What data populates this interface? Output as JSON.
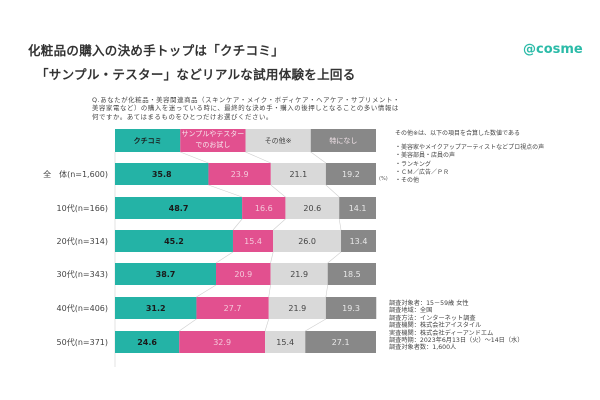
{
  "header": {
    "title_line1": "化粧品の購入の決め手トップは「クチコミ」",
    "title_line2": "「サンプル・テスター」などリアルな試用体験を上回る",
    "logo": "@cosme"
  },
  "question": [
    "Q.あなたが化粧品・美容関連商品（スキンケア・メイク・ボディケア・ヘアケア・サプリメント・",
    "美容家電など）の購入を迷っている時に、最終的な決め手・購入の後押しとなることの多い情報は",
    "何ですか。あてはまるものをひとつだけお選びください。"
  ],
  "note": {
    "heading": "その他※は、以下の項目を合算した数値である",
    "items": [
      "・美容家やメイクアップアーティストなどプロ視点の声",
      "・美容部員・店員の声",
      "・ランキング",
      "・ＣＭ／広告／ＰＲ",
      "・その他"
    ]
  },
  "survey": [
    "調査対象者：15－59歳 女性",
    "調査地域：全国",
    "調査方法：インターネット調査",
    "調査機関：株式会社アイスタイル",
    "実査機関：株式会社ディーアンドエム",
    "調査時期：2023年6月13日（火）～14日（水）",
    "調査対象者数：1,600人"
  ],
  "chart_data": {
    "type": "bar",
    "stacked": true,
    "orientation": "horizontal",
    "title": "化粧品の購入の決め手トップは「クチコミ」",
    "unit": "(%)",
    "xlim": [
      0,
      100
    ],
    "categories": [
      "全　体(n=1,600)",
      "10代(n=166)",
      "20代(n=314)",
      "30代(n=343)",
      "40代(n=406)",
      "50代(n=371)"
    ],
    "legend_header": [
      "クチコミ",
      "サンプルやテスター|でのお試し",
      "その他※",
      "特になし"
    ],
    "series": [
      {
        "name": "クチコミ",
        "color": "#24b3a6",
        "text_color": "#1a1a1a",
        "values": [
          35.8,
          48.7,
          45.2,
          38.7,
          31.2,
          24.6
        ]
      },
      {
        "name": "サンプルやテスターでのお試し",
        "color": "#e2508f",
        "text_color": "#f4c8da",
        "values": [
          23.9,
          16.6,
          15.4,
          20.9,
          27.7,
          32.9
        ]
      },
      {
        "name": "その他※",
        "color": "#d9d9d9",
        "text_color": "#444444",
        "values": [
          21.1,
          20.6,
          26.0,
          21.9,
          21.9,
          15.4
        ]
      },
      {
        "name": "特になし",
        "color": "#888888",
        "text_color": "#e8e8e8",
        "values": [
          19.2,
          14.1,
          13.4,
          18.5,
          19.3,
          27.1
        ]
      }
    ]
  }
}
